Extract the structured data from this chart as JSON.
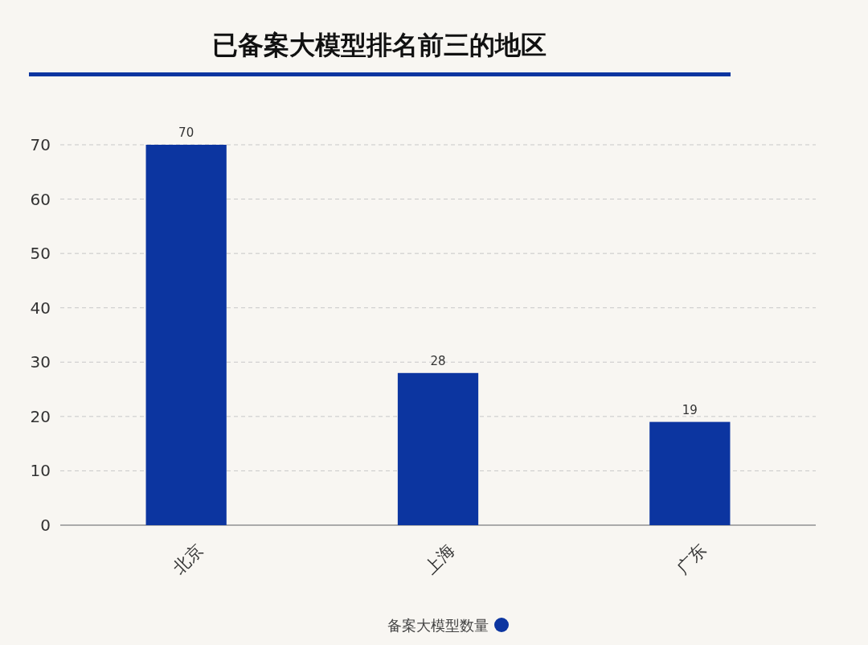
{
  "chart_data": {
    "type": "bar",
    "title": "已备案大模型排名前三的地区",
    "categories": [
      "北京",
      "上海",
      "广东"
    ],
    "series": [
      {
        "name": "备案大模型数量",
        "color": "#0c35a0",
        "values": [
          70,
          28,
          19
        ]
      }
    ],
    "ylim": [
      0,
      70
    ],
    "yticks": [
      0,
      10,
      20,
      30,
      40,
      50,
      60,
      70
    ],
    "grid": "y",
    "legend": "bottom",
    "data_labels": true
  }
}
